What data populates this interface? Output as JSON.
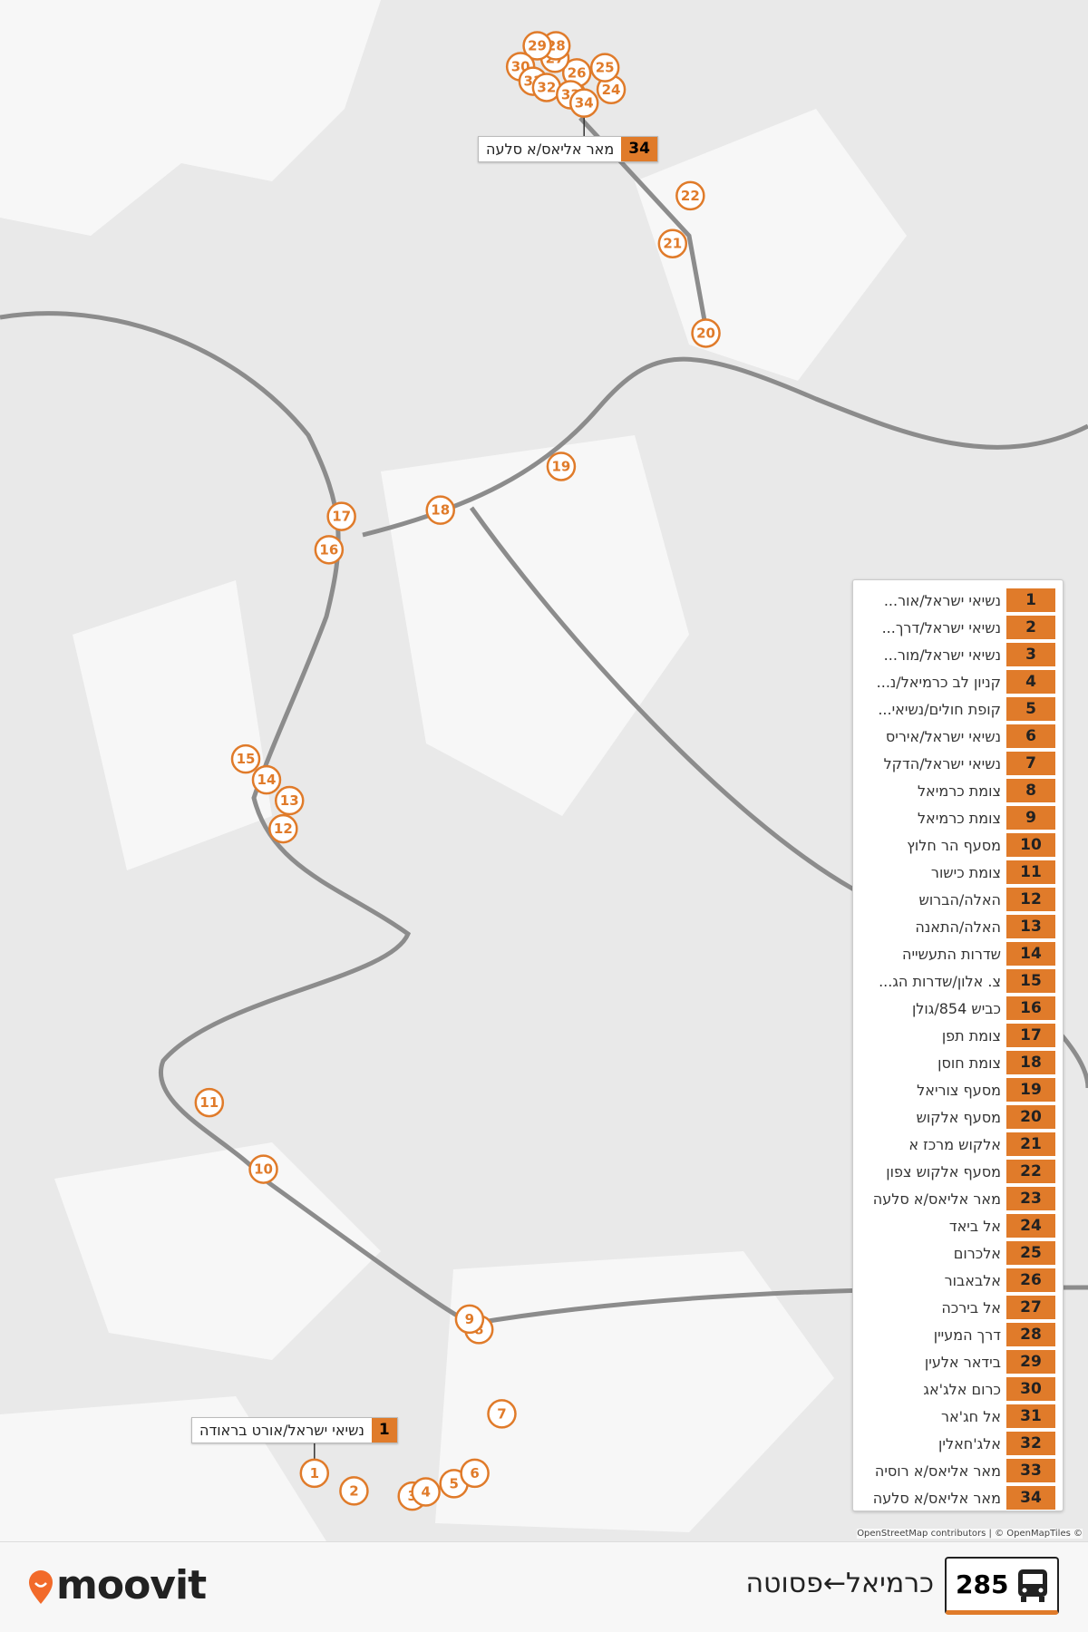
{
  "route": {
    "number": "285",
    "name": "כרמיאל←פסוטה"
  },
  "brand": "moovit",
  "attribution": "OpenStreetMap contributors | © OpenMapTiles ©",
  "callouts": [
    {
      "number": 34,
      "name": "מאר אליאס/א סלעה"
    },
    {
      "number": 1,
      "name": "נשיאי ישראל/אורט בראודה"
    }
  ],
  "stops": [
    {
      "number": 1,
      "name": "נשיאי ישראל/אור..."
    },
    {
      "number": 2,
      "name": "נשיאי ישראל/דרך..."
    },
    {
      "number": 3,
      "name": "נשיאי ישראל/מור..."
    },
    {
      "number": 4,
      "name": "קניון לב כרמיאל/נ..."
    },
    {
      "number": 5,
      "name": "קופת חולים/נשיאי..."
    },
    {
      "number": 6,
      "name": "נשיאי ישראל/איריס"
    },
    {
      "number": 7,
      "name": "נשיאי ישראל/הדקל"
    },
    {
      "number": 8,
      "name": "צומת כרמיאל"
    },
    {
      "number": 9,
      "name": "צומת כרמיאל"
    },
    {
      "number": 10,
      "name": "מסעף הר חלוץ"
    },
    {
      "number": 11,
      "name": "צומת כישור"
    },
    {
      "number": 12,
      "name": "האלה/הברוש"
    },
    {
      "number": 13,
      "name": "האלה/התאנה"
    },
    {
      "number": 14,
      "name": "שדרות התעשייה"
    },
    {
      "number": 15,
      "name": "צ. אלון/שדרות הג..."
    },
    {
      "number": 16,
      "name": "כביש 854/גולן"
    },
    {
      "number": 17,
      "name": "צומת תפן"
    },
    {
      "number": 18,
      "name": "צומת חוסן"
    },
    {
      "number": 19,
      "name": "מסעף צוריאל"
    },
    {
      "number": 20,
      "name": "מסעף אלקוש"
    },
    {
      "number": 21,
      "name": "אלקוש מרכז א"
    },
    {
      "number": 22,
      "name": "מסעף אלקוש צפון"
    },
    {
      "number": 23,
      "name": "מאר אליאס/א סלעה"
    },
    {
      "number": 24,
      "name": "אל ביאד"
    },
    {
      "number": 25,
      "name": "אלכרום"
    },
    {
      "number": 26,
      "name": "אלבאבור"
    },
    {
      "number": 27,
      "name": "אל בירכה"
    },
    {
      "number": 28,
      "name": "דרך המעיין"
    },
    {
      "number": 29,
      "name": "בידאר אלעין"
    },
    {
      "number": 30,
      "name": "כרום אלג'אג"
    },
    {
      "number": 31,
      "name": "אל חג'אר"
    },
    {
      "number": 32,
      "name": "אלג'חאלין"
    },
    {
      "number": 33,
      "name": "מאר אליאס/א רוסיה"
    },
    {
      "number": 34,
      "name": "מאר אליאס/א סלעה"
    }
  ]
}
